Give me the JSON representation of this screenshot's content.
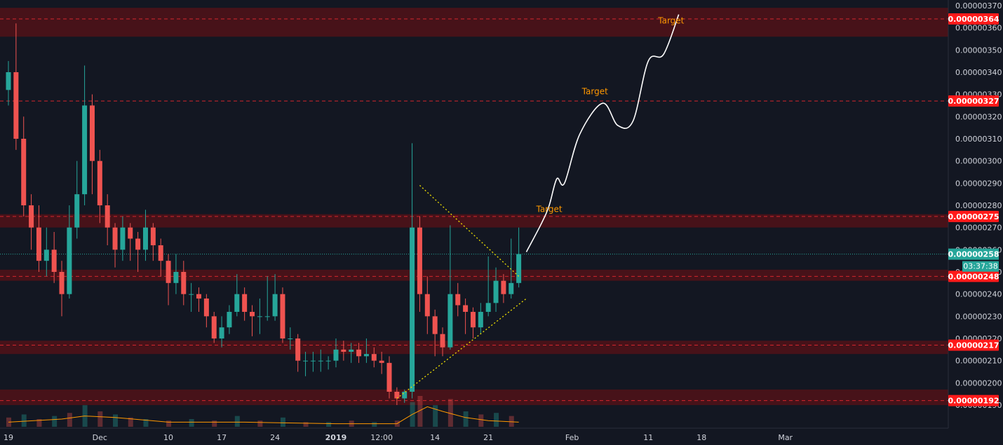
{
  "chart_data": {
    "type": "candlestick",
    "x_ticks": [
      "19",
      "Dec",
      "10",
      "17",
      "24",
      "2019",
      "12:00",
      "14",
      "21",
      "Feb",
      "11",
      "18",
      "Mar"
    ],
    "y_ticks": [
      "0.00000370",
      "0.00000360",
      "0.00000350",
      "0.00000340",
      "0.00000330",
      "0.00000320",
      "0.00000310",
      "0.00000300",
      "0.00000290",
      "0.00000280",
      "0.00000270",
      "0.00000260",
      "0.00000250",
      "0.00000240",
      "0.00000230",
      "0.00000220",
      "0.00000210",
      "0.00000200",
      "0.00000190"
    ],
    "ylim": [
      1.85e-06,
      3.7e-06
    ],
    "current_price": "0.00000258",
    "current_price_value": 2.58e-06,
    "countdown": "03:37:38",
    "levels": [
      {
        "label": "0.00000364",
        "value": 3.64e-06,
        "zone": [
          3.56e-06,
          3.69e-06
        ]
      },
      {
        "label": "0.00000327",
        "value": 3.27e-06,
        "zone": null
      },
      {
        "label": "0.00000275",
        "value": 2.75e-06,
        "zone": [
          2.7e-06,
          2.76e-06
        ]
      },
      {
        "label": "0.00000248",
        "value": 2.48e-06,
        "zone": [
          2.46e-06,
          2.51e-06
        ]
      },
      {
        "label": "0.00000217",
        "value": 2.17e-06,
        "zone": [
          2.13e-06,
          2.19e-06
        ]
      },
      {
        "label": "0.00000192",
        "value": 1.92e-06,
        "zone": [
          1.9e-06,
          1.97e-06
        ]
      }
    ],
    "annotations": [
      {
        "text": "Target",
        "date": "2019-02-14",
        "price": 3.62e-06
      },
      {
        "text": "Target",
        "date": "2019-02-04",
        "price": 3.3e-06
      },
      {
        "text": "Target",
        "date": "2019-01-29",
        "price": 2.77e-06
      }
    ],
    "close_path": [
      [
        "2018-11-19",
        3.3e-06
      ],
      [
        "2018-11-20",
        3.35e-06
      ],
      [
        "2018-11-21",
        3.1e-06
      ],
      [
        "2018-11-22",
        2.8e-06
      ],
      [
        "2018-11-23",
        2.7e-06
      ],
      [
        "2018-11-24",
        2.55e-06
      ],
      [
        "2018-11-25",
        2.6e-06
      ],
      [
        "2018-11-26",
        2.5e-06
      ],
      [
        "2018-11-27",
        2.4e-06
      ],
      [
        "2018-11-28",
        2.7e-06
      ],
      [
        "2018-11-29",
        2.85e-06
      ],
      [
        "2018-11-30",
        3.25e-06
      ],
      [
        "2018-12-01",
        3e-06
      ],
      [
        "2018-12-02",
        2.8e-06
      ],
      [
        "2018-12-03",
        2.7e-06
      ],
      [
        "2018-12-04",
        2.6e-06
      ],
      [
        "2018-12-05",
        2.7e-06
      ],
      [
        "2018-12-06",
        2.65e-06
      ],
      [
        "2018-12-07",
        2.6e-06
      ],
      [
        "2018-12-08",
        2.7e-06
      ],
      [
        "2018-12-09",
        2.62e-06
      ],
      [
        "2018-12-10",
        2.55e-06
      ],
      [
        "2018-12-11",
        2.45e-06
      ],
      [
        "2018-12-12",
        2.5e-06
      ],
      [
        "2018-12-13",
        2.4e-06
      ],
      [
        "2018-12-14",
        2.4e-06
      ],
      [
        "2018-12-15",
        2.38e-06
      ],
      [
        "2018-12-16",
        2.3e-06
      ],
      [
        "2018-12-17",
        2.2e-06
      ],
      [
        "2018-12-18",
        2.25e-06
      ],
      [
        "2018-12-19",
        2.32e-06
      ],
      [
        "2018-12-20",
        2.4e-06
      ],
      [
        "2018-12-21",
        2.32e-06
      ],
      [
        "2018-12-22",
        2.3e-06
      ],
      [
        "2018-12-23",
        2.3e-06
      ],
      [
        "2018-12-24",
        2.3e-06
      ],
      [
        "2018-12-25",
        2.4e-06
      ],
      [
        "2018-12-26",
        2.2e-06
      ],
      [
        "2018-12-27",
        2.2e-06
      ],
      [
        "2018-12-28",
        2.1e-06
      ],
      [
        "2018-12-29",
        2.1e-06
      ],
      [
        "2018-12-30",
        2.1e-06
      ],
      [
        "2018-12-31",
        2.1e-06
      ],
      [
        "2019-01-01",
        2.1e-06
      ],
      [
        "2019-01-02",
        2.15e-06
      ],
      [
        "2019-01-03",
        2.14e-06
      ],
      [
        "2019-01-04",
        2.15e-06
      ],
      [
        "2019-01-05",
        2.12e-06
      ],
      [
        "2019-01-06",
        2.13e-06
      ],
      [
        "2019-01-07",
        2.1e-06
      ],
      [
        "2019-01-08",
        2.09e-06
      ],
      [
        "2019-01-09",
        1.96e-06
      ],
      [
        "2019-01-10",
        1.93e-06
      ],
      [
        "2019-01-11",
        1.96e-06
      ],
      [
        "2019-01-12",
        2.7e-06
      ],
      [
        "2019-01-13",
        2.4e-06
      ],
      [
        "2019-01-14",
        2.3e-06
      ],
      [
        "2019-01-15",
        2.22e-06
      ],
      [
        "2019-01-16",
        2.16e-06
      ],
      [
        "2019-01-17",
        2.4e-06
      ],
      [
        "2019-01-18",
        2.35e-06
      ],
      [
        "2019-01-19",
        2.32e-06
      ],
      [
        "2019-01-20",
        2.25e-06
      ],
      [
        "2019-01-21",
        2.32e-06
      ],
      [
        "2019-01-22",
        2.36e-06
      ],
      [
        "2019-01-23",
        2.46e-06
      ],
      [
        "2019-01-24",
        2.4e-06
      ],
      [
        "2019-01-25",
        2.45e-06
      ],
      [
        "2019-01-26",
        2.58e-06
      ]
    ],
    "candles": [
      {
        "date": "2018-11-19",
        "open": 3.32e-06,
        "high": 3.45e-06,
        "low": 3.25e-06,
        "close": 3.4e-06
      },
      {
        "date": "2018-11-20",
        "open": 3.4e-06,
        "high": 3.62e-06,
        "low": 3.05e-06,
        "close": 3.1e-06
      },
      {
        "date": "2018-11-21",
        "open": 3.1e-06,
        "high": 3.2e-06,
        "low": 2.75e-06,
        "close": 2.8e-06
      },
      {
        "date": "2018-11-22",
        "open": 2.8e-06,
        "high": 2.85e-06,
        "low": 2.6e-06,
        "close": 2.7e-06
      },
      {
        "date": "2018-11-23",
        "open": 2.7e-06,
        "high": 2.8e-06,
        "low": 2.5e-06,
        "close": 2.55e-06
      },
      {
        "date": "2018-11-24",
        "open": 2.55e-06,
        "high": 2.7e-06,
        "low": 2.48e-06,
        "close": 2.6e-06
      },
      {
        "date": "2018-11-25",
        "open": 2.6e-06,
        "high": 2.68e-06,
        "low": 2.45e-06,
        "close": 2.5e-06
      },
      {
        "date": "2018-11-26",
        "open": 2.5e-06,
        "high": 2.55e-06,
        "low": 2.3e-06,
        "close": 2.4e-06
      },
      {
        "date": "2018-11-27",
        "open": 2.4e-06,
        "high": 2.8e-06,
        "low": 2.38e-06,
        "close": 2.7e-06
      },
      {
        "date": "2018-11-28",
        "open": 2.7e-06,
        "high": 3e-06,
        "low": 2.65e-06,
        "close": 2.85e-06
      },
      {
        "date": "2018-11-29",
        "open": 2.85e-06,
        "high": 3.43e-06,
        "low": 2.8e-06,
        "close": 3.25e-06
      },
      {
        "date": "2018-11-30",
        "open": 3.25e-06,
        "high": 3.3e-06,
        "low": 2.85e-06,
        "close": 3e-06
      },
      {
        "date": "2018-12-01",
        "open": 3e-06,
        "high": 3.05e-06,
        "low": 2.72e-06,
        "close": 2.8e-06
      },
      {
        "date": "2018-12-02",
        "open": 2.8e-06,
        "high": 2.85e-06,
        "low": 2.62e-06,
        "close": 2.7e-06
      },
      {
        "date": "2018-12-03",
        "open": 2.7e-06,
        "high": 2.72e-06,
        "low": 2.52e-06,
        "close": 2.6e-06
      },
      {
        "date": "2018-12-04",
        "open": 2.6e-06,
        "high": 2.75e-06,
        "low": 2.55e-06,
        "close": 2.7e-06
      },
      {
        "date": "2018-12-05",
        "open": 2.7e-06,
        "high": 2.72e-06,
        "low": 2.55e-06,
        "close": 2.65e-06
      },
      {
        "date": "2018-12-06",
        "open": 2.65e-06,
        "high": 2.68e-06,
        "low": 2.5e-06,
        "close": 2.6e-06
      },
      {
        "date": "2018-12-07",
        "open": 2.6e-06,
        "high": 2.78e-06,
        "low": 2.55e-06,
        "close": 2.7e-06
      },
      {
        "date": "2018-12-08",
        "open": 2.7e-06,
        "high": 2.72e-06,
        "low": 2.55e-06,
        "close": 2.62e-06
      },
      {
        "date": "2018-12-09",
        "open": 2.62e-06,
        "high": 2.65e-06,
        "low": 2.48e-06,
        "close": 2.55e-06
      },
      {
        "date": "2018-12-10",
        "open": 2.55e-06,
        "high": 2.58e-06,
        "low": 2.35e-06,
        "close": 2.45e-06
      },
      {
        "date": "2018-12-11",
        "open": 2.45e-06,
        "high": 2.58e-06,
        "low": 2.4e-06,
        "close": 2.5e-06
      },
      {
        "date": "2018-12-12",
        "open": 2.5e-06,
        "high": 2.55e-06,
        "low": 2.35e-06,
        "close": 2.4e-06
      },
      {
        "date": "2018-12-13",
        "open": 2.4e-06,
        "high": 2.45e-06,
        "low": 2.32e-06,
        "close": 2.4e-06
      },
      {
        "date": "2018-12-14",
        "open": 2.4e-06,
        "high": 2.43e-06,
        "low": 2.32e-06,
        "close": 2.38e-06
      },
      {
        "date": "2018-12-15",
        "open": 2.38e-06,
        "high": 2.4e-06,
        "low": 2.25e-06,
        "close": 2.3e-06
      },
      {
        "date": "2018-12-16",
        "open": 2.3e-06,
        "high": 2.32e-06,
        "low": 2.18e-06,
        "close": 2.2e-06
      },
      {
        "date": "2018-12-17",
        "open": 2.2e-06,
        "high": 2.3e-06,
        "low": 2.16e-06,
        "close": 2.25e-06
      },
      {
        "date": "2018-12-18",
        "open": 2.25e-06,
        "high": 2.35e-06,
        "low": 2.22e-06,
        "close": 2.32e-06
      },
      {
        "date": "2018-12-19",
        "open": 2.32e-06,
        "high": 2.49e-06,
        "low": 2.3e-06,
        "close": 2.4e-06
      },
      {
        "date": "2018-12-20",
        "open": 2.4e-06,
        "high": 2.43e-06,
        "low": 2.28e-06,
        "close": 2.32e-06
      },
      {
        "date": "2018-12-21",
        "open": 2.32e-06,
        "high": 2.35e-06,
        "low": 2.21e-06,
        "close": 2.3e-06
      },
      {
        "date": "2018-12-22",
        "open": 2.3e-06,
        "high": 2.38e-06,
        "low": 2.22e-06,
        "close": 2.3e-06
      },
      {
        "date": "2018-12-23",
        "open": 2.3e-06,
        "high": 2.48e-06,
        "low": 2.28e-06,
        "close": 2.3e-06
      },
      {
        "date": "2018-12-24",
        "open": 2.3e-06,
        "high": 2.49e-06,
        "low": 2.28e-06,
        "close": 2.4e-06
      },
      {
        "date": "2018-12-25",
        "open": 2.4e-06,
        "high": 2.43e-06,
        "low": 2.18e-06,
        "close": 2.2e-06
      },
      {
        "date": "2018-12-26",
        "open": 2.2e-06,
        "high": 2.25e-06,
        "low": 2.15e-06,
        "close": 2.2e-06
      },
      {
        "date": "2018-12-27",
        "open": 2.2e-06,
        "high": 2.22e-06,
        "low": 2.05e-06,
        "close": 2.1e-06
      },
      {
        "date": "2018-12-28",
        "open": 2.1e-06,
        "high": 2.14e-06,
        "low": 2.03e-06,
        "close": 2.1e-06
      },
      {
        "date": "2018-12-29",
        "open": 2.1e-06,
        "high": 2.14e-06,
        "low": 2.05e-06,
        "close": 2.1e-06
      },
      {
        "date": "2018-12-30",
        "open": 2.1e-06,
        "high": 2.15e-06,
        "low": 2.05e-06,
        "close": 2.1e-06
      },
      {
        "date": "2018-12-31",
        "open": 2.1e-06,
        "high": 2.12e-06,
        "low": 2.06e-06,
        "close": 2.1e-06
      },
      {
        "date": "2019-01-01",
        "open": 2.1e-06,
        "high": 2.2e-06,
        "low": 2.07e-06,
        "close": 2.15e-06
      },
      {
        "date": "2019-01-02",
        "open": 2.15e-06,
        "high": 2.19e-06,
        "low": 2.1e-06,
        "close": 2.14e-06
      },
      {
        "date": "2019-01-03",
        "open": 2.14e-06,
        "high": 2.18e-06,
        "low": 2.09e-06,
        "close": 2.15e-06
      },
      {
        "date": "2019-01-04",
        "open": 2.15e-06,
        "high": 2.18e-06,
        "low": 2.09e-06,
        "close": 2.12e-06
      },
      {
        "date": "2019-01-05",
        "open": 2.12e-06,
        "high": 2.2e-06,
        "low": 2.09e-06,
        "close": 2.13e-06
      },
      {
        "date": "2019-01-06",
        "open": 2.13e-06,
        "high": 2.16e-06,
        "low": 2.07e-06,
        "close": 2.1e-06
      },
      {
        "date": "2019-01-07",
        "open": 2.1e-06,
        "high": 2.14e-06,
        "low": 2.04e-06,
        "close": 2.09e-06
      },
      {
        "date": "2019-01-08",
        "open": 2.09e-06,
        "high": 2.12e-06,
        "low": 1.93e-06,
        "close": 1.96e-06
      },
      {
        "date": "2019-01-09",
        "open": 1.96e-06,
        "high": 1.98e-06,
        "low": 1.9e-06,
        "close": 1.93e-06
      },
      {
        "date": "2019-01-10",
        "open": 1.93e-06,
        "high": 1.97e-06,
        "low": 1.91e-06,
        "close": 1.96e-06
      },
      {
        "date": "2019-01-11",
        "open": 1.96e-06,
        "high": 3.08e-06,
        "low": 1.93e-06,
        "close": 2.7e-06
      },
      {
        "date": "2019-01-12",
        "open": 2.7e-06,
        "high": 2.75e-06,
        "low": 2.32e-06,
        "close": 2.4e-06
      },
      {
        "date": "2019-01-13",
        "open": 2.4e-06,
        "high": 2.48e-06,
        "low": 2.22e-06,
        "close": 2.3e-06
      },
      {
        "date": "2019-01-14",
        "open": 2.3e-06,
        "high": 2.33e-06,
        "low": 2.12e-06,
        "close": 2.22e-06
      },
      {
        "date": "2019-01-15",
        "open": 2.22e-06,
        "high": 2.25e-06,
        "low": 2.12e-06,
        "close": 2.16e-06
      },
      {
        "date": "2019-01-16",
        "open": 2.16e-06,
        "high": 2.71e-06,
        "low": 2.15e-06,
        "close": 2.4e-06
      },
      {
        "date": "2019-01-17",
        "open": 2.4e-06,
        "high": 2.45e-06,
        "low": 2.3e-06,
        "close": 2.35e-06
      },
      {
        "date": "2019-01-18",
        "open": 2.35e-06,
        "high": 2.38e-06,
        "low": 2.22e-06,
        "close": 2.32e-06
      },
      {
        "date": "2019-01-19",
        "open": 2.32e-06,
        "high": 2.34e-06,
        "low": 2.2e-06,
        "close": 2.25e-06
      },
      {
        "date": "2019-01-20",
        "open": 2.25e-06,
        "high": 2.36e-06,
        "low": 2.22e-06,
        "close": 2.32e-06
      },
      {
        "date": "2019-01-21",
        "open": 2.32e-06,
        "high": 2.57e-06,
        "low": 2.3e-06,
        "close": 2.36e-06
      },
      {
        "date": "2019-01-22",
        "open": 2.36e-06,
        "high": 2.52e-06,
        "low": 2.32e-06,
        "close": 2.46e-06
      },
      {
        "date": "2019-01-23",
        "open": 2.46e-06,
        "high": 2.49e-06,
        "low": 2.36e-06,
        "close": 2.4e-06
      },
      {
        "date": "2019-01-24",
        "open": 2.4e-06,
        "high": 2.65e-06,
        "low": 2.38e-06,
        "close": 2.45e-06
      },
      {
        "date": "2019-01-25",
        "open": 2.45e-06,
        "high": 2.7e-06,
        "low": 2.43e-06,
        "close": 2.58e-06
      }
    ],
    "volume": [
      {
        "date": "2018-11-19",
        "value": 6
      },
      {
        "date": "2018-11-21",
        "value": 8
      },
      {
        "date": "2018-11-23",
        "value": 5
      },
      {
        "date": "2018-11-25",
        "value": 7
      },
      {
        "date": "2018-11-27",
        "value": 9
      },
      {
        "date": "2018-11-29",
        "value": 14
      },
      {
        "date": "2018-12-01",
        "value": 10
      },
      {
        "date": "2018-12-03",
        "value": 8
      },
      {
        "date": "2018-12-05",
        "value": 6
      },
      {
        "date": "2018-12-07",
        "value": 5
      },
      {
        "date": "2018-12-10",
        "value": 4
      },
      {
        "date": "2018-12-13",
        "value": 5
      },
      {
        "date": "2018-12-16",
        "value": 4
      },
      {
        "date": "2018-12-19",
        "value": 7
      },
      {
        "date": "2018-12-22",
        "value": 4
      },
      {
        "date": "2018-12-25",
        "value": 6
      },
      {
        "date": "2018-12-28",
        "value": 3
      },
      {
        "date": "2018-12-31",
        "value": 3
      },
      {
        "date": "2019-01-03",
        "value": 4
      },
      {
        "date": "2019-01-06",
        "value": 3
      },
      {
        "date": "2019-01-09",
        "value": 4
      },
      {
        "date": "2019-01-11",
        "value": 16
      },
      {
        "date": "2019-01-12",
        "value": 20
      },
      {
        "date": "2019-01-14",
        "value": 14
      },
      {
        "date": "2019-01-16",
        "value": 18
      },
      {
        "date": "2019-01-18",
        "value": 10
      },
      {
        "date": "2019-01-20",
        "value": 8
      },
      {
        "date": "2019-01-22",
        "value": 9
      },
      {
        "date": "2019-01-24",
        "value": 7
      }
    ],
    "volume_ma": [
      [
        "2018-11-19",
        3
      ],
      [
        "2018-11-26",
        5
      ],
      [
        "2018-11-29",
        7
      ],
      [
        "2018-12-03",
        6
      ],
      [
        "2018-12-10",
        3
      ],
      [
        "2018-12-20",
        3
      ],
      [
        "2019-01-01",
        2
      ],
      [
        "2019-01-09",
        2
      ],
      [
        "2019-01-11",
        8
      ],
      [
        "2019-01-13",
        13
      ],
      [
        "2019-01-15",
        10
      ],
      [
        "2019-01-18",
        6
      ],
      [
        "2019-01-21",
        4
      ],
      [
        "2019-01-25",
        3
      ]
    ],
    "triangle": {
      "upper": [
        [
          "2019-01-12",
          2.89e-06
        ],
        [
          "2019-01-25",
          2.48e-06
        ]
      ],
      "lower": [
        [
          "2019-01-09",
          1.93e-06
        ],
        [
          "2019-01-26",
          2.38e-06
        ]
      ]
    },
    "projection": [
      [
        "2019-01-26",
        2.59e-06
      ],
      [
        "2019-01-28",
        2.72e-06
      ],
      [
        "2019-01-29",
        2.8e-06
      ],
      [
        "2019-01-30",
        2.92e-06
      ],
      [
        "2019-01-31",
        2.9e-06
      ],
      [
        "2019-02-02",
        3.12e-06
      ],
      [
        "2019-02-05",
        3.26e-06
      ],
      [
        "2019-02-07",
        3.16e-06
      ],
      [
        "2019-02-09",
        3.18e-06
      ],
      [
        "2019-02-11",
        3.45e-06
      ],
      [
        "2019-02-13",
        3.48e-06
      ],
      [
        "2019-02-15",
        3.66e-06
      ]
    ],
    "colors": {
      "background": "#131722",
      "up": "#26a69a",
      "down": "#ef5350",
      "zone_fill": "#4a1219",
      "level_line": "#d3262d",
      "level_label": "#ff1a1a",
      "current_price_line": "#26a69a",
      "triangle": "#f2e200",
      "projection": "#ffffff",
      "annotation": "#ff9800",
      "axis_text": "#d1d4dc",
      "volume_ma": "#ff9800"
    }
  }
}
